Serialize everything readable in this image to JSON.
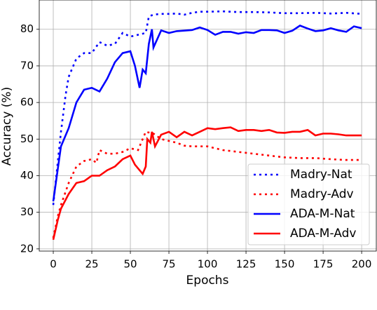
{
  "chart_data": {
    "type": "line",
    "x_label": "Epochs",
    "y_label": "Accuracy (%)",
    "xlim": [
      -9.1,
      209.5
    ],
    "ylim": [
      19.4,
      88
    ],
    "xticks": [
      0,
      25,
      50,
      75,
      100,
      125,
      150,
      175,
      200
    ],
    "yticks": [
      20,
      30,
      40,
      50,
      60,
      70,
      80
    ],
    "grid": true,
    "legend": "lower right",
    "series": [
      {
        "name": "Madry-Nat",
        "color": "#0000ff",
        "linestyle": "dotted",
        "x": [
          0,
          2,
          5,
          8,
          10,
          13,
          15,
          20,
          25,
          30,
          35,
          40,
          45,
          50,
          55,
          60,
          62,
          65,
          70,
          75,
          80,
          85,
          90,
          95,
          100,
          110,
          120,
          130,
          140,
          150,
          160,
          170,
          180,
          190,
          200
        ],
        "values": [
          32,
          40,
          52,
          62,
          67,
          70,
          72,
          73.5,
          73.5,
          76.5,
          75.5,
          76,
          79,
          78,
          78.5,
          79,
          83.5,
          84,
          84.2,
          84.2,
          84.3,
          84,
          84.5,
          84.8,
          84.8,
          84.9,
          84.7,
          84.7,
          84.6,
          84.4,
          84.4,
          84.5,
          84.3,
          84.5,
          84.2
        ]
      },
      {
        "name": "Madry-Adv",
        "color": "#ff0000",
        "linestyle": "dotted",
        "x": [
          0,
          3,
          5,
          10,
          15,
          20,
          25,
          28,
          30,
          35,
          40,
          45,
          50,
          55,
          60,
          65,
          70,
          75,
          80,
          85,
          90,
          100,
          110,
          120,
          130,
          140,
          150,
          160,
          170,
          180,
          190,
          200
        ],
        "values": [
          23,
          29,
          32,
          38,
          42.5,
          44,
          44.5,
          43.5,
          47,
          46,
          46,
          46.5,
          47.5,
          47,
          52,
          51.5,
          50,
          49.5,
          49,
          48.2,
          48,
          48,
          47,
          46.5,
          46,
          45.5,
          45,
          44.8,
          44.8,
          44.5,
          44.3,
          44.3
        ]
      },
      {
        "name": "ADA-M-Nat",
        "color": "#0000ff",
        "linestyle": "solid",
        "x": [
          0,
          3,
          5,
          10,
          15,
          20,
          25,
          30,
          35,
          40,
          45,
          50,
          53,
          56,
          58,
          60,
          62,
          64,
          65,
          70,
          75,
          80,
          90,
          95,
          100,
          105,
          110,
          115,
          120,
          125,
          130,
          135,
          140,
          145,
          150,
          155,
          160,
          165,
          170,
          175,
          180,
          185,
          190,
          195,
          200
        ],
        "values": [
          33,
          42,
          48,
          53,
          60,
          63.5,
          64,
          63,
          66.5,
          71,
          73.5,
          74,
          70,
          64,
          69,
          68,
          76,
          80,
          75,
          79.7,
          79,
          79.5,
          79.8,
          80.5,
          79.8,
          78.5,
          79.3,
          79.3,
          78.8,
          79.2,
          79,
          79.8,
          79.8,
          79.7,
          79,
          79.6,
          81,
          80.2,
          79.5,
          79.7,
          80.3,
          79.7,
          79.3,
          80.8,
          80.3
        ]
      },
      {
        "name": "ADA-M-Adv",
        "color": "#ff0000",
        "linestyle": "solid",
        "x": [
          0,
          3,
          5,
          10,
          15,
          20,
          25,
          30,
          35,
          40,
          45,
          50,
          53,
          56,
          58,
          60,
          61,
          63,
          64,
          66,
          70,
          75,
          80,
          85,
          90,
          95,
          100,
          105,
          110,
          115,
          120,
          125,
          130,
          135,
          140,
          145,
          150,
          155,
          160,
          165,
          170,
          175,
          180,
          185,
          190,
          200
        ],
        "values": [
          22.5,
          28,
          31,
          35,
          38,
          38.5,
          40,
          40,
          41.5,
          42.5,
          44.5,
          45.5,
          43,
          41.5,
          40.5,
          42.5,
          50,
          49,
          52,
          48,
          51.2,
          52,
          50.5,
          52,
          51,
          52,
          53,
          52.7,
          53,
          53.2,
          52.2,
          52.5,
          52.5,
          52.2,
          52.5,
          51.8,
          51.7,
          52,
          52,
          52.5,
          51,
          51.5,
          51.5,
          51.3,
          51,
          51
        ]
      }
    ]
  }
}
